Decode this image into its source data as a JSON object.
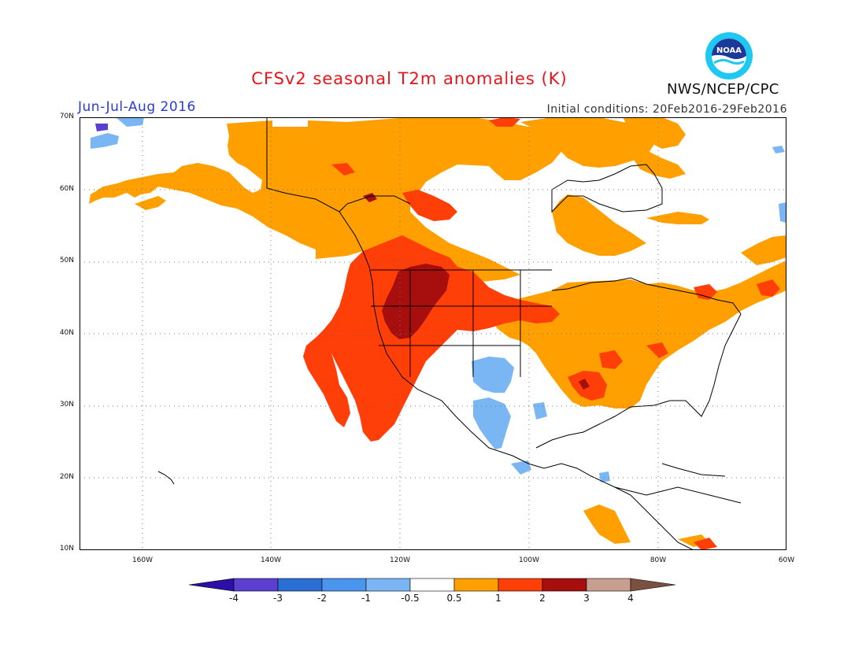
{
  "header": {
    "title": "CFSv2 seasonal T2m anomalies (K)",
    "season": "Jun-Jul-Aug 2016",
    "initial_conditions": "Initial conditions: 20Feb2016-29Feb2016",
    "agency": "NWS/NCEP/CPC",
    "logo_text": "NOAA"
  },
  "map": {
    "lat_labels": [
      "70N",
      "60N",
      "50N",
      "40N",
      "30N",
      "20N",
      "10N"
    ],
    "lon_labels": [
      "160W",
      "140W",
      "120W",
      "100W",
      "80W",
      "60W"
    ],
    "grid": true
  },
  "colorbar": {
    "labels": [
      "-4",
      "-3",
      "-2",
      "-1",
      "-0.5",
      "0.5",
      "1",
      "2",
      "3",
      "4"
    ],
    "colors": [
      "#2b0fa6",
      "#5a3fd0",
      "#2c6fd4",
      "#4a95ee",
      "#7bb6f4",
      "#ffffff",
      "#ffa000",
      "#ff3e08",
      "#a70e0e",
      "#c79e8f",
      "#7a5040"
    ]
  }
}
